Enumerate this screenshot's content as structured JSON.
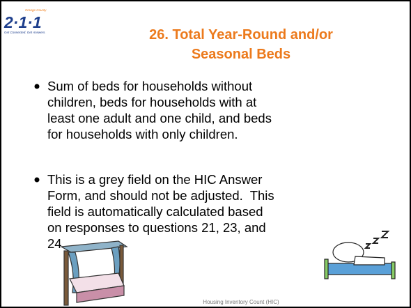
{
  "header": {
    "logo": {
      "top": "Orange County",
      "main": "2·1·1",
      "tagline": "Get Connected. Get Answers."
    },
    "title": [
      "26. Total Year-Round and/or",
      "Seasonal Beds"
    ]
  },
  "bullets": [
    [
      "Sum of beds for households without",
      "children, beds for households with at",
      "least one adult and one child, and beds",
      "for households with only children."
    ],
    [
      "This is a grey field on the HIC Answer",
      "Form, and should not be adjusted.  This",
      "field is automatically calculated based",
      "on responses to questions 21, 23, and",
      "24."
    ]
  ],
  "footer": "Housing Inventory Count (HIC)"
}
